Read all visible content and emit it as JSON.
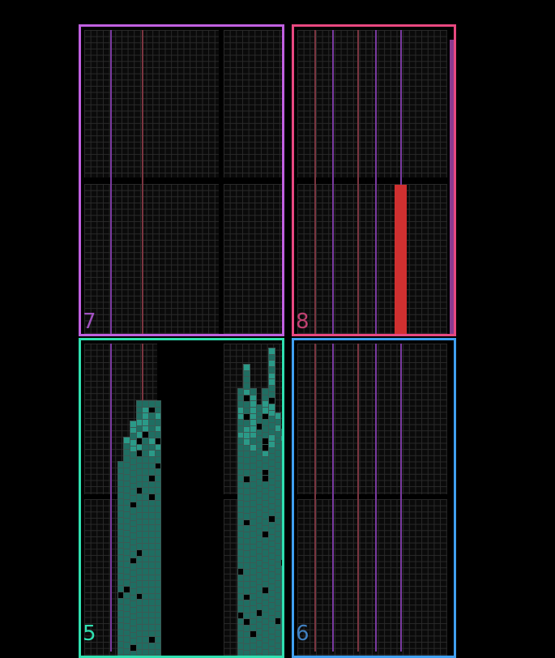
{
  "panels": [
    {
      "id": "7",
      "label": "7",
      "color": "#c060e0"
    },
    {
      "id": "8",
      "label": "8",
      "color": "#e84880"
    },
    {
      "id": "5",
      "label": "5",
      "color": "#30e0b0"
    },
    {
      "id": "6",
      "label": "6",
      "color": "#40a0f0"
    }
  ],
  "colors": {
    "grid": "#2a2a2a",
    "teal_fill": "#1f6e62",
    "red_bar": "#d03030",
    "purple_line": "#7a3aa0",
    "red_line": "#7a3540"
  }
}
